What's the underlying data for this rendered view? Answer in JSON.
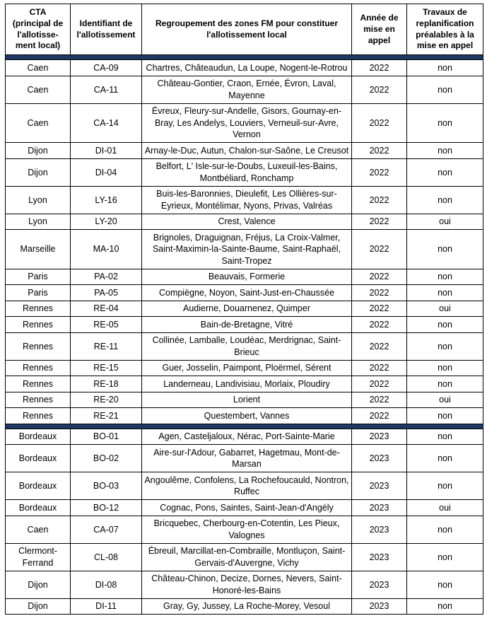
{
  "table": {
    "separator_color": "#203864",
    "headers": [
      "CTA\n(principal de\nl'allotisse-\nment local)",
      "Identifiant de\nl'allotissement",
      "Regroupement des zones FM pour constituer\nl'allotissement local",
      "Année de\nmise en\nappel",
      "Travaux de\nreplanification\npréalables à la\nmise en appel"
    ],
    "rows": [
      {
        "separator": true
      },
      {
        "cta": "Caen",
        "id": "CA-09",
        "zones": "Chartres, Châteaudun, La Loupe, Nogent-le-Rotrou",
        "annee": "2022",
        "travaux": "non"
      },
      {
        "cta": "Caen",
        "id": "CA-11",
        "zones": "Château-Gontier, Craon, Ernée, Évron, Laval, Mayenne",
        "annee": "2022",
        "travaux": "non"
      },
      {
        "cta": "Caen",
        "id": "CA-14",
        "zones": "Évreux, Fleury-sur-Andelle, Gisors, Gournay-en-Bray, Les Andelys, Louviers, Verneuil-sur-Avre, Vernon",
        "annee": "2022",
        "travaux": "non"
      },
      {
        "cta": "Dijon",
        "id": "DI-01",
        "zones": "Arnay-le-Duc, Autun, Chalon-sur-Saône, Le Creusot",
        "annee": "2022",
        "travaux": "non"
      },
      {
        "cta": "Dijon",
        "id": "DI-04",
        "zones": "Belfort, L' Isle-sur-le-Doubs, Luxeuil-les-Bains, Montbéliard, Ronchamp",
        "annee": "2022",
        "travaux": "non"
      },
      {
        "cta": "Lyon",
        "id": "LY-16",
        "zones": "Buis-les-Baronnies, Dieulefit, Les Ollières-sur-Eyrieux, Montélimar, Nyons, Privas, Valréas",
        "annee": "2022",
        "travaux": "non"
      },
      {
        "cta": "Lyon",
        "id": "LY-20",
        "zones": "Crest, Valence",
        "annee": "2022",
        "travaux": "oui"
      },
      {
        "cta": "Marseille",
        "id": "MA-10",
        "zones": "Brignoles, Draguignan, Fréjus, La Croix-Valmer, Saint-Maximin-la-Sainte-Baume, Saint-Raphaël, Saint-Tropez",
        "annee": "2022",
        "travaux": "non"
      },
      {
        "cta": "Paris",
        "id": "PA-02",
        "zones": "Beauvais, Formerie",
        "annee": "2022",
        "travaux": "non"
      },
      {
        "cta": "Paris",
        "id": "PA-05",
        "zones": "Compiègne, Noyon, Saint-Just-en-Chaussée",
        "annee": "2022",
        "travaux": "non"
      },
      {
        "cta": "Rennes",
        "id": "RE-04",
        "zones": "Audierne, Douarnenez, Quimper",
        "annee": "2022",
        "travaux": "oui"
      },
      {
        "cta": "Rennes",
        "id": "RE-05",
        "zones": "Bain-de-Bretagne, Vitré",
        "annee": "2022",
        "travaux": "non"
      },
      {
        "cta": "Rennes",
        "id": "RE-11",
        "zones": "Collinée, Lamballe, Loudéac, Merdrignac, Saint-Brieuc",
        "annee": "2022",
        "travaux": "non"
      },
      {
        "cta": "Rennes",
        "id": "RE-15",
        "zones": "Guer, Josselin, Paimpont, Ploërmel, Sérent",
        "annee": "2022",
        "travaux": "non"
      },
      {
        "cta": "Rennes",
        "id": "RE-18",
        "zones": "Landerneau, Landivisiau, Morlaix, Ploudiry",
        "annee": "2022",
        "travaux": "non"
      },
      {
        "cta": "Rennes",
        "id": "RE-20",
        "zones": "Lorient",
        "annee": "2022",
        "travaux": "oui"
      },
      {
        "cta": "Rennes",
        "id": "RE-21",
        "zones": "Questembert, Vannes",
        "annee": "2022",
        "travaux": "non"
      },
      {
        "separator": true
      },
      {
        "cta": "Bordeaux",
        "id": "BO-01",
        "zones": "Agen, Casteljaloux, Nérac, Port-Sainte-Marie",
        "annee": "2023",
        "travaux": "non"
      },
      {
        "cta": "Bordeaux",
        "id": "BO-02",
        "zones": "Aire-sur-l'Adour, Gabarret, Hagetmau, Mont-de-Marsan",
        "annee": "2023",
        "travaux": "non"
      },
      {
        "cta": "Bordeaux",
        "id": "BO-03",
        "zones": "Angoulême, Confolens, La Rochefoucauld, Nontron, Ruffec",
        "annee": "2023",
        "travaux": "non"
      },
      {
        "cta": "Bordeaux",
        "id": "BO-12",
        "zones": "Cognac, Pons, Saintes, Saint-Jean-d'Angély",
        "annee": "2023",
        "travaux": "oui"
      },
      {
        "cta": "Caen",
        "id": "CA-07",
        "zones": "Bricquebec, Cherbourg-en-Cotentin, Les Pieux, Valognes",
        "annee": "2023",
        "travaux": "non"
      },
      {
        "cta": "Clermont-Ferrand",
        "id": "CL-08",
        "zones": "Ébreuil, Marcillat-en-Combraille, Montluçon, Saint-Gervais-d'Auvergne, Vichy",
        "annee": "2023",
        "travaux": "non"
      },
      {
        "cta": "Dijon",
        "id": "DI-08",
        "zones": "Château-Chinon, Decize, Dornes, Nevers, Saint-Honoré-les-Bains",
        "annee": "2023",
        "travaux": "non"
      },
      {
        "cta": "Dijon",
        "id": "DI-11",
        "zones": "Gray, Gy, Jussey, La Roche-Morey, Vesoul",
        "annee": "2023",
        "travaux": "non"
      }
    ]
  }
}
